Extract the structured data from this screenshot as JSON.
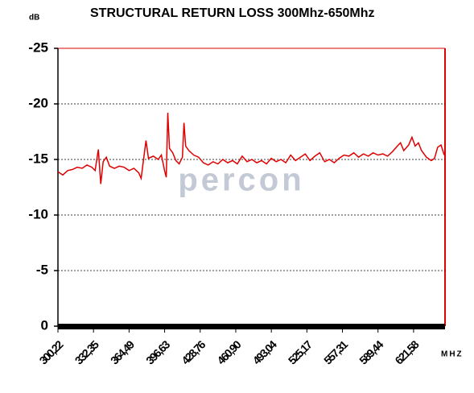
{
  "chart_data": {
    "type": "line",
    "title": "STRUCTURAL RETURN LOSS 300Mhz-650Mhz",
    "y_label": "dB",
    "x_label": "MHZ",
    "watermark": "percon",
    "color": "#e00000",
    "grid": true,
    "xlim": [
      300.22,
      650
    ],
    "ylim": [
      0,
      -25
    ],
    "yticks": [
      0,
      -5,
      -10,
      -15,
      -20,
      -25
    ],
    "xticks": [
      {
        "value": 300.22,
        "label": "300,22"
      },
      {
        "value": 332.35,
        "label": "332,35"
      },
      {
        "value": 364.49,
        "label": "364,49"
      },
      {
        "value": 396.63,
        "label": "396,63"
      },
      {
        "value": 428.76,
        "label": "428,76"
      },
      {
        "value": 460.9,
        "label": "460,90"
      },
      {
        "value": 493.04,
        "label": "493,04"
      },
      {
        "value": 525.17,
        "label": "525,17"
      },
      {
        "value": 557.31,
        "label": "557,31"
      },
      {
        "value": 589.44,
        "label": "589,44"
      },
      {
        "value": 621.58,
        "label": "621,58"
      }
    ],
    "x": [
      300.2,
      304.6,
      309.0,
      313.4,
      317.7,
      322.1,
      326.5,
      330.9,
      333.8,
      336.7,
      338.9,
      341.1,
      343.9,
      346.9,
      351.3,
      355.7,
      360.1,
      364.5,
      368.9,
      373.2,
      375.4,
      377.6,
      379.8,
      382.0,
      386.4,
      390.8,
      393.7,
      396.6,
      398.1,
      399.5,
      401.0,
      403.9,
      406.8,
      409.7,
      412.7,
      414.1,
      415.6,
      418.5,
      422.9,
      427.3,
      431.6,
      436.0,
      440.4,
      444.8,
      449.2,
      453.6,
      458.0,
      462.3,
      466.7,
      471.1,
      475.5,
      479.9,
      484.2,
      488.6,
      493.0,
      497.4,
      501.8,
      506.1,
      510.5,
      514.9,
      519.3,
      523.7,
      528.0,
      532.4,
      536.8,
      541.2,
      545.6,
      549.9,
      554.3,
      558.7,
      563.1,
      567.5,
      571.9,
      576.2,
      580.6,
      585.0,
      589.4,
      593.8,
      598.1,
      602.5,
      606.9,
      609.8,
      612.7,
      617.1,
      620.1,
      623.0,
      625.9,
      628.8,
      633.2,
      637.6,
      640.5,
      643.4,
      646.4,
      649.3
    ],
    "values": [
      -13.9,
      -13.6,
      -14.0,
      -14.1,
      -14.3,
      -14.2,
      -14.5,
      -14.3,
      -14.0,
      -15.9,
      -12.8,
      -14.8,
      -15.2,
      -14.4,
      -14.2,
      -14.4,
      -14.3,
      -14.0,
      -14.2,
      -13.8,
      -13.3,
      -15.0,
      -16.7,
      -15.1,
      -15.3,
      -15.0,
      -15.4,
      -14.0,
      -13.4,
      -19.2,
      -16.0,
      -15.6,
      -14.9,
      -14.6,
      -15.2,
      -18.3,
      -16.2,
      -15.8,
      -15.4,
      -15.2,
      -14.7,
      -14.5,
      -14.8,
      -14.6,
      -15.0,
      -14.7,
      -14.9,
      -14.6,
      -15.3,
      -14.8,
      -15.0,
      -14.7,
      -14.9,
      -14.6,
      -15.1,
      -14.8,
      -15.0,
      -14.7,
      -15.4,
      -14.9,
      -15.2,
      -15.5,
      -14.9,
      -15.3,
      -15.6,
      -14.8,
      -15.0,
      -14.7,
      -15.1,
      -15.4,
      -15.3,
      -15.6,
      -15.2,
      -15.5,
      -15.3,
      -15.6,
      -15.4,
      -15.5,
      -15.3,
      -15.7,
      -16.2,
      -16.5,
      -15.8,
      -16.3,
      -17.0,
      -16.2,
      -16.5,
      -15.8,
      -15.2,
      -14.9,
      -15.1,
      -16.1,
      -16.3,
      -15.4
    ]
  }
}
